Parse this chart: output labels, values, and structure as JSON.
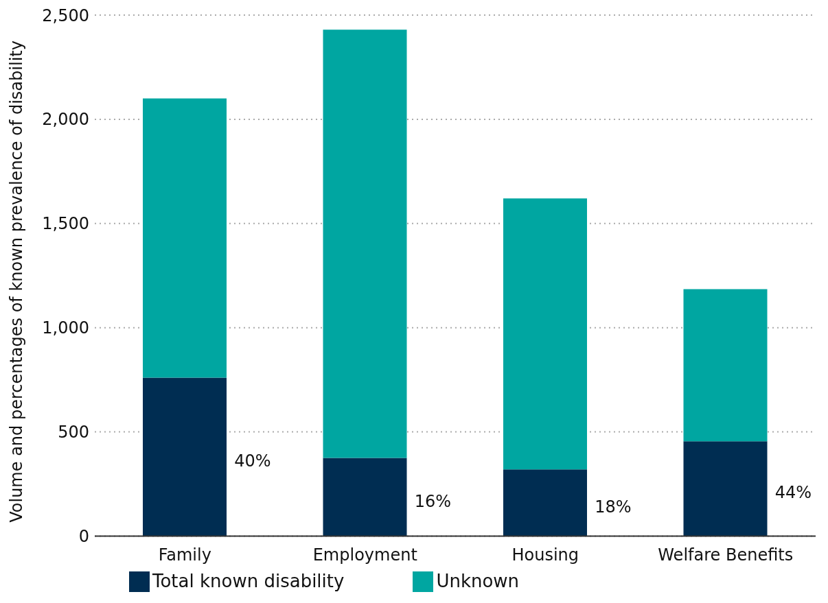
{
  "chart_data": {
    "type": "bar",
    "ylabel": "Volume and percentages of known prevalence of disability",
    "categories": [
      "Family",
      "Employment",
      "Housing",
      "Welfare Benefits"
    ],
    "series": [
      {
        "name": "Total known disability",
        "color": "#002d52",
        "values": [
          760,
          375,
          320,
          455
        ]
      },
      {
        "name": "Unknown",
        "color": "#00a6a1",
        "values": [
          1340,
          2055,
          1300,
          730
        ]
      }
    ],
    "annotations": [
      "40%",
      "16%",
      "18%",
      "44%"
    ],
    "stacked": true,
    "ylim": [
      0,
      2500
    ],
    "yticks": [
      {
        "value": 0,
        "label": "0"
      },
      {
        "value": 500,
        "label": "500"
      },
      {
        "value": 1000,
        "label": "1,000"
      },
      {
        "value": 1500,
        "label": "1,500"
      },
      {
        "value": 2000,
        "label": "2,000"
      },
      {
        "value": 2500,
        "label": "2,500"
      }
    ],
    "grid": "y",
    "legend": "bottom"
  }
}
